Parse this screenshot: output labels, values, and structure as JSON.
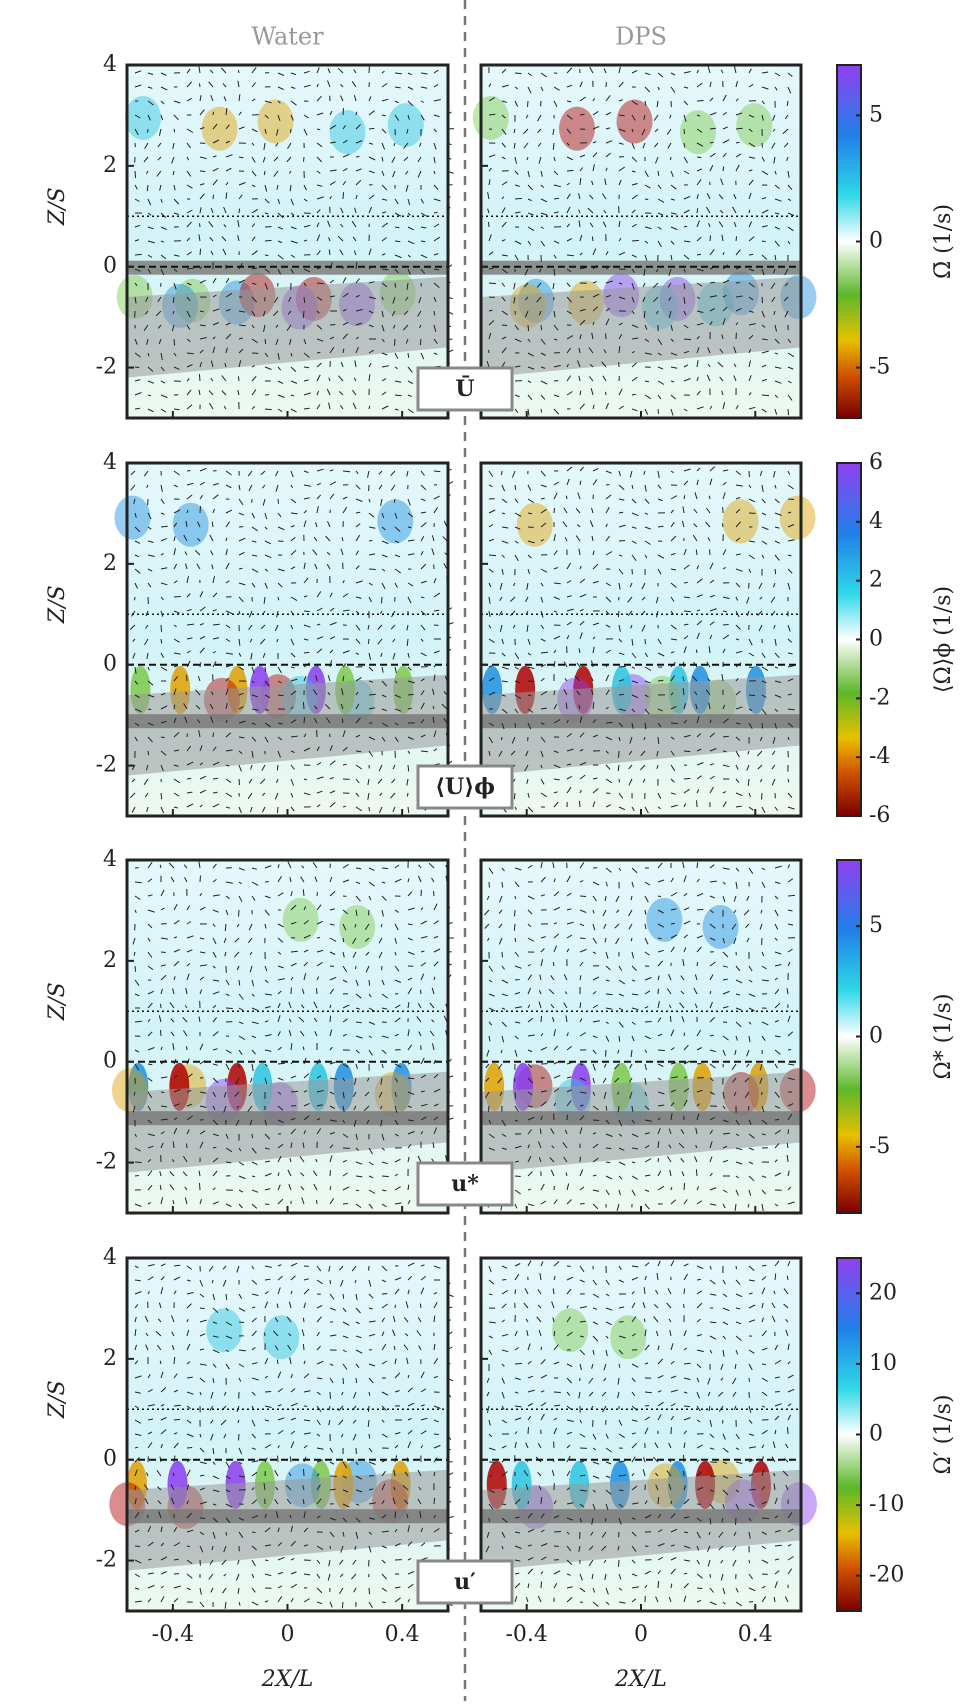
{
  "chart_data": [
    {
      "type": "quiver",
      "panel_titles": [
        "Water",
        "DPS"
      ],
      "y_label": "Z/S",
      "label": "Ū",
      "colorbar_label": "Ω̄ (1/s)",
      "clim": [
        -7,
        7
      ],
      "cticks": [
        -5,
        0,
        5
      ],
      "xlim": [
        -0.56,
        0.56
      ],
      "xticks": [
        -0.4,
        0,
        0.4
      ],
      "ylim": [
        -3,
        4
      ],
      "yticks": [
        -2,
        0,
        2,
        4
      ]
    },
    {
      "type": "quiver",
      "y_label": "Z/S",
      "label": "⟨U⟩ϕ",
      "colorbar_label": "⟨Ω⟩ϕ (1/s)",
      "clim": [
        -6,
        6
      ],
      "cticks": [
        -6,
        -4,
        -2,
        0,
        2,
        4,
        6
      ],
      "xlim": [
        -0.56,
        0.56
      ],
      "xticks": [
        -0.4,
        0,
        0.4
      ],
      "ylim": [
        -3,
        4
      ],
      "yticks": [
        -2,
        0,
        2,
        4
      ]
    },
    {
      "type": "quiver",
      "y_label": "Z/S",
      "label": "u*",
      "colorbar_label": "Ω* (1/s)",
      "clim": [
        -8,
        8
      ],
      "cticks": [
        -5,
        0,
        5
      ],
      "xlim": [
        -0.56,
        0.56
      ],
      "xticks": [
        -0.4,
        0,
        0.4
      ],
      "ylim": [
        -3,
        4
      ],
      "yticks": [
        -2,
        0,
        2,
        4
      ]
    },
    {
      "type": "quiver",
      "y_label": "Z/S",
      "label": "u′",
      "x_label": "2X/L",
      "colorbar_label": "Ω′ (1/s)",
      "clim": [
        -25,
        25
      ],
      "cticks": [
        -20,
        -10,
        0,
        10,
        20
      ],
      "xlim": [
        -0.56,
        0.56
      ],
      "xticks": [
        -0.4,
        0,
        0.4
      ],
      "ylim": [
        -3,
        4
      ],
      "yticks": [
        -2,
        0,
        2,
        4
      ]
    }
  ]
}
